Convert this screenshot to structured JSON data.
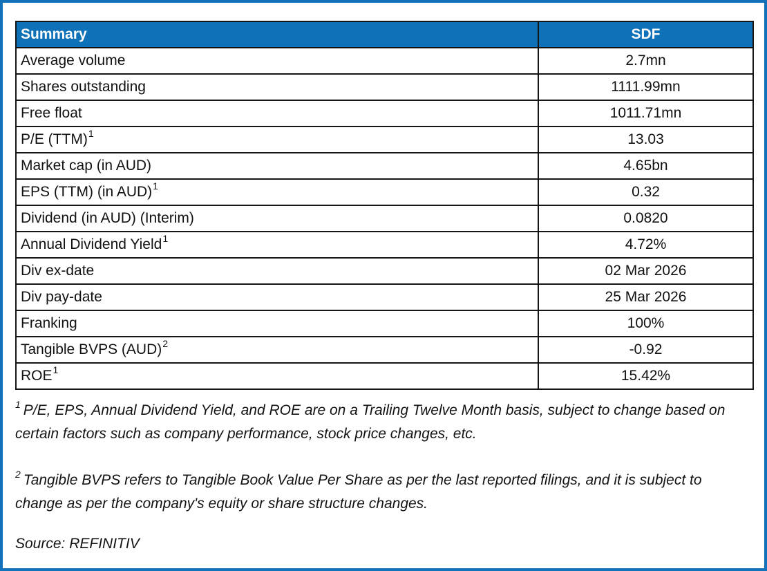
{
  "colors": {
    "frame_border": "#1271b9",
    "header_background": "#0f72b9",
    "header_text": "#ffffff",
    "cell_border": "#141414"
  },
  "table": {
    "header": {
      "col1": "Summary",
      "col2": "SDF"
    },
    "rows": [
      {
        "label": "Average volume",
        "sup": "",
        "value": "2.7mn"
      },
      {
        "label": "Shares outstanding",
        "sup": "",
        "value": "1111.99mn"
      },
      {
        "label": "Free float",
        "sup": "",
        "value": "1011.71mn"
      },
      {
        "label": "P/E (TTM)",
        "sup": "1",
        "value": "13.03"
      },
      {
        "label": "Market cap (in AUD)",
        "sup": "",
        "value": "4.65bn"
      },
      {
        "label": "EPS (TTM) (in AUD)",
        "sup": "1",
        "value": "0.32"
      },
      {
        "label": "Dividend (in AUD) (Interim)",
        "sup": "",
        "value": "0.0820"
      },
      {
        "label": "Annual Dividend Yield",
        "sup": "1",
        "value": "4.72%"
      },
      {
        "label": "Div ex-date",
        "sup": "",
        "value": "02 Mar 2026"
      },
      {
        "label": "Div pay-date",
        "sup": "",
        "value": "25 Mar 2026"
      },
      {
        "label": "Franking",
        "sup": "",
        "value": "100%"
      },
      {
        "label": "Tangible BVPS (AUD)",
        "sup": "2",
        "value": "-0.92"
      },
      {
        "label": "ROE",
        "sup": "1",
        "value": "15.42%"
      }
    ]
  },
  "footnotes": [
    {
      "sup": "1",
      "text": "P/E, EPS, Annual Dividend Yield, and ROE are on a Trailing Twelve Month basis, subject to change based on certain factors such as company performance, stock price changes, etc."
    },
    {
      "sup": "2",
      "text": "Tangible BVPS refers to Tangible Book Value Per Share as per the last reported filings, and it is subject to change as per the company's equity or share structure changes."
    }
  ],
  "source": "Source: REFINITIV"
}
